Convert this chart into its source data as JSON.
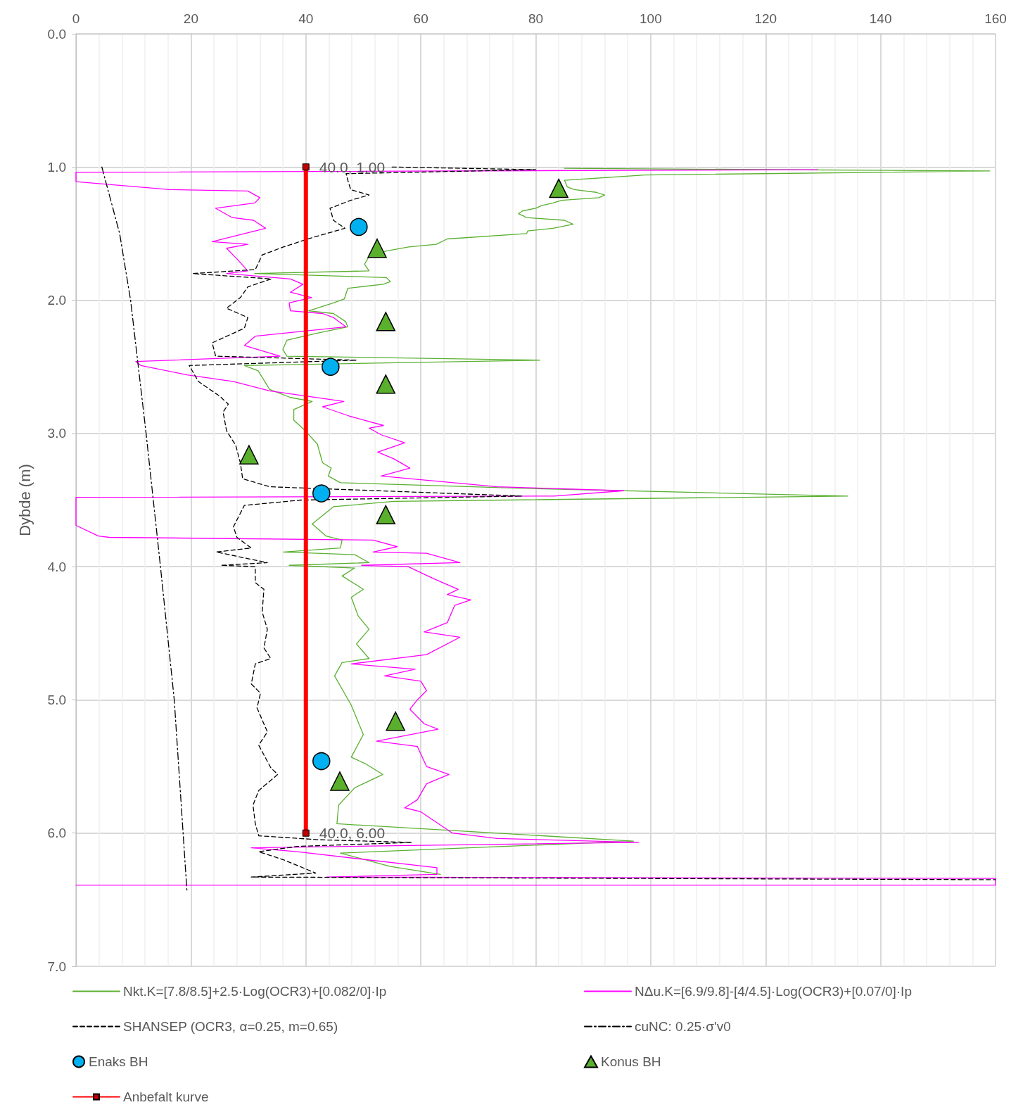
{
  "chart_data": {
    "type": "line",
    "ylabel": "Dybde (m)",
    "xlim": [
      0,
      160
    ],
    "xticks": [
      0,
      20,
      40,
      60,
      80,
      100,
      120,
      140,
      160
    ],
    "ylim": [
      7,
      0
    ],
    "yticks": [
      {
        "value": 0,
        "label": "0.0"
      },
      {
        "value": 1,
        "label": "1.0"
      },
      {
        "value": 2,
        "label": "2.0"
      },
      {
        "value": 3,
        "label": "3.0"
      },
      {
        "value": 4,
        "label": "4.0"
      },
      {
        "value": 5,
        "label": "5.0"
      },
      {
        "value": 6,
        "label": "6.0"
      },
      {
        "value": 7,
        "label": "7.0"
      }
    ],
    "grid": true,
    "legend": "bottom",
    "series": [
      {
        "name": "Nkt.K=[7.8/8.5]+2.5·Log(OCR3)+[0.082/0]·Ip",
        "color": "#5ab031",
        "line_style": "solid",
        "marker": "none",
        "x": [
          85,
          159,
          99,
          85,
          85.5,
          86.7,
          90.5,
          92,
          91,
          84.5,
          83,
          81,
          80,
          77.7,
          77,
          78,
          78.3,
          85,
          86.5,
          83,
          78.6,
          78.4,
          64.6,
          62.7,
          57.9,
          54,
          51,
          50.2,
          51,
          31.1,
          54,
          54.7,
          53.5,
          47.3,
          46.7,
          44.8,
          40.5,
          44.8,
          46.9,
          47.3,
          41.7,
          36.7,
          36,
          36.7,
          80.7,
          29.3,
          31.7,
          33.7,
          37.3,
          41.1,
          37.9,
          37.9,
          39.9,
          42,
          42.9,
          44.4,
          43.9,
          46,
          76,
          134.3,
          55.3,
          44.8,
          41.1,
          43.5,
          46.3,
          46,
          36.1,
          48.5,
          51,
          37.1,
          48.5,
          46.3,
          50,
          47.9,
          49.1,
          51,
          48.8,
          51,
          46.3,
          45,
          47.9,
          50,
          47.9,
          50.4,
          53.4,
          48.5,
          45.7,
          45.4,
          97,
          46,
          54.7,
          63.4
        ],
        "values": [
          1.01,
          1.03,
          1.06,
          1.1,
          1.15,
          1.17,
          1.19,
          1.21,
          1.23,
          1.25,
          1.27,
          1.29,
          1.31,
          1.33,
          1.35,
          1.37,
          1.38,
          1.4,
          1.43,
          1.46,
          1.48,
          1.5,
          1.54,
          1.58,
          1.6,
          1.63,
          1.67,
          1.73,
          1.78,
          1.8,
          1.83,
          1.86,
          1.88,
          1.91,
          1.99,
          2.02,
          2.08,
          2.1,
          2.16,
          2.2,
          2.25,
          2.3,
          2.37,
          2.42,
          2.45,
          2.49,
          2.53,
          2.67,
          2.73,
          2.76,
          2.82,
          2.9,
          2.98,
          3.08,
          3.22,
          3.26,
          3.32,
          3.37,
          3.41,
          3.47,
          3.51,
          3.55,
          3.68,
          3.77,
          3.8,
          3.86,
          3.89,
          3.91,
          3.97,
          3.99,
          4.01,
          4.07,
          4.17,
          4.23,
          4.37,
          4.47,
          4.58,
          4.69,
          4.72,
          4.82,
          5.04,
          5.26,
          5.43,
          5.48,
          5.56,
          5.66,
          5.79,
          5.93,
          6.06,
          6.15,
          6.25,
          6.31
        ]
      },
      {
        "name": "NΔu.K=[6.9/9.8]-[4/4.5]·Log(OCR3)+[0.07/0]·Ip",
        "color": "#ff00ff",
        "line_style": "solid",
        "marker": "none",
        "x": [
          129,
          0,
          0,
          16.3,
          29.9,
          32,
          31.1,
          24.3,
          27.2,
          30.9,
          33,
          23.7,
          29.9,
          26.2,
          28,
          29.9,
          26.2,
          37.3,
          39.5,
          37.3,
          41,
          37.1,
          37.3,
          42.9,
          44.8,
          47,
          31.2,
          29.3,
          35.5,
          10.4,
          11.3,
          19.3,
          27.4,
          33.7,
          46.6,
          42.9,
          47.6,
          53.5,
          51,
          53.1,
          57.2,
          52.5,
          55.3,
          58.1,
          53.1,
          73.3,
          95.3,
          83.2,
          0,
          0,
          3.9,
          5.8,
          51.7,
          55.9,
          51.7,
          61,
          66.8,
          49.7,
          57.8,
          62.2,
          66.5,
          64.6,
          68.7,
          65.9,
          64.6,
          60.6,
          66.8,
          61,
          47.9,
          59,
          53.7,
          60,
          61,
          59.4,
          58.1,
          60.6,
          63,
          52.3,
          59.4,
          61,
          64.9,
          61,
          59.4,
          57.2,
          60,
          65.5,
          73.3,
          97.9,
          30.5,
          38.5,
          62.8,
          62.8,
          43.6,
          160,
          160,
          0
        ],
        "values": [
          1.02,
          1.04,
          1.11,
          1.17,
          1.18,
          1.23,
          1.27,
          1.31,
          1.38,
          1.4,
          1.46,
          1.56,
          1.58,
          1.61,
          1.69,
          1.78,
          1.8,
          1.84,
          1.88,
          1.94,
          1.98,
          2.02,
          2.08,
          2.1,
          2.13,
          2.2,
          2.27,
          2.34,
          2.42,
          2.46,
          2.49,
          2.56,
          2.61,
          2.68,
          2.76,
          2.8,
          2.87,
          2.94,
          2.96,
          3.01,
          3.07,
          3.14,
          3.19,
          3.26,
          3.32,
          3.4,
          3.43,
          3.47,
          3.48,
          3.69,
          3.77,
          3.78,
          3.8,
          3.85,
          3.89,
          3.9,
          3.97,
          3.99,
          4.0,
          4.09,
          4.17,
          4.21,
          4.25,
          4.29,
          4.42,
          4.49,
          4.53,
          4.66,
          4.73,
          4.77,
          4.82,
          4.86,
          4.93,
          5.0,
          5.07,
          5.18,
          5.22,
          5.31,
          5.35,
          5.5,
          5.56,
          5.63,
          5.75,
          5.81,
          5.84,
          6.0,
          6.04,
          6.07,
          6.11,
          6.14,
          6.26,
          6.31,
          6.33,
          6.34,
          6.39,
          6.39
        ]
      },
      {
        "name": "SHANSEP (OCR3, α=0.25, m=0.65)",
        "color": "#000000",
        "line_style": "dashed",
        "marker": "none",
        "x": [
          55,
          80,
          47,
          47.3,
          47.8,
          51,
          47.8,
          44.2,
          44.8,
          46.8,
          41.1,
          36.1,
          32.4,
          31.2,
          20.3,
          34,
          29.9,
          28.6,
          26.2,
          29.9,
          29.3,
          23.7,
          24.3,
          48.8,
          19.7,
          21.3,
          25,
          26.5,
          25.6,
          26.2,
          27.8,
          28.6,
          29,
          33.7,
          39.8,
          77.6,
          39.2,
          29.3,
          27.4,
          28,
          30.5,
          24.4,
          33.3,
          25.2,
          31.2,
          31.2,
          32.7,
          32.4,
          33.3,
          32.7,
          33.9,
          31.2,
          30.5,
          32.1,
          31.5,
          33.3,
          31.8,
          33.9,
          35.1,
          31.8,
          30.8,
          31.2,
          31.8,
          42.3,
          58.4,
          38.5,
          31.8,
          36.1,
          41.7,
          30.5,
          160
        ],
        "values": [
          1.0,
          1.02,
          1.05,
          1.1,
          1.17,
          1.21,
          1.25,
          1.31,
          1.4,
          1.46,
          1.53,
          1.6,
          1.66,
          1.77,
          1.8,
          1.84,
          1.9,
          1.98,
          2.06,
          2.13,
          2.21,
          2.32,
          2.42,
          2.45,
          2.49,
          2.61,
          2.72,
          2.78,
          2.84,
          2.98,
          3.09,
          3.22,
          3.34,
          3.4,
          3.41,
          3.47,
          3.5,
          3.54,
          3.7,
          3.78,
          3.86,
          3.89,
          3.97,
          3.99,
          4.0,
          4.12,
          4.17,
          4.34,
          4.47,
          4.61,
          4.69,
          4.73,
          4.88,
          4.95,
          5.06,
          5.24,
          5.34,
          5.51,
          5.56,
          5.68,
          5.79,
          5.93,
          6.02,
          6.05,
          6.07,
          6.1,
          6.14,
          6.2,
          6.3,
          6.33,
          6.35
        ]
      },
      {
        "name": "cuNC: 0.25·σ'v0",
        "color": "#000000",
        "line_style": "dashdot",
        "marker": "none",
        "x": [
          4.5,
          7.6,
          9.5,
          12.2,
          14.7,
          17.1,
          19.3
        ],
        "values": [
          1.0,
          1.5,
          2.0,
          3.0,
          4.0,
          5.0,
          6.43
        ]
      },
      {
        "name": "Enaks BH",
        "type": "scatter",
        "color": "#00b0f0",
        "marker": "circle",
        "x": [
          49.2,
          44.3,
          42.7,
          42.7
        ],
        "values": [
          1.45,
          2.5,
          3.45,
          5.46
        ]
      },
      {
        "name": "Konus BH",
        "type": "scatter",
        "color": "#5aaf2d",
        "marker": "triangle",
        "x": [
          84,
          52.4,
          53.9,
          53.9,
          30.1,
          53.9,
          55.6,
          45.9
        ],
        "values": [
          1.16,
          1.61,
          2.16,
          2.63,
          3.16,
          3.61,
          5.16,
          5.61
        ]
      },
      {
        "name": "Anbefalt kurve",
        "color": "#ff0000",
        "line_style": "solid",
        "marker": "square",
        "x": [
          40,
          40
        ],
        "values": [
          1.0,
          6.0
        ],
        "value_labels": [
          "40.0, 1.00",
          "40.0, 6.00"
        ]
      }
    ]
  }
}
